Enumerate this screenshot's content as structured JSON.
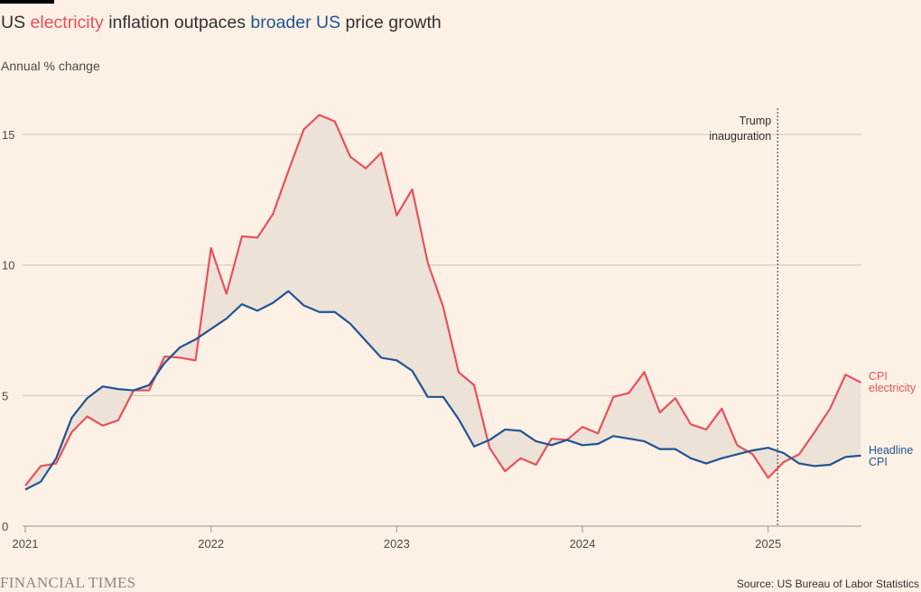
{
  "title": {
    "prefix": "US ",
    "highlight_red": "electricity",
    "middle": " inflation outpaces ",
    "highlight_blue": "broader US",
    "suffix": " price growth"
  },
  "footer": {
    "logo": "FINANCIAL TIMES",
    "source": "Source: US Bureau of Labor Statistics"
  },
  "colors": {
    "background": "#fdf1e5",
    "electricity": "#e9505c",
    "headline": "#1f5493",
    "fill": "#ede2d8",
    "grid": "#cfc4bb"
  },
  "chart_data": {
    "type": "line",
    "title": "US electricity inflation outpaces broader US price growth",
    "ylabel": "Annual % change",
    "xlabel": "",
    "ylim": [
      0,
      16
    ],
    "yticks": [
      0,
      5,
      10,
      15
    ],
    "xticks": [
      "2021",
      "2022",
      "2023",
      "2024",
      "2025"
    ],
    "x_start": "2021-01",
    "x_end": "2025-07",
    "frequency": "monthly",
    "grid": true,
    "shaded_gap_between_series": true,
    "annotation": {
      "date": "2025-01-20",
      "label_line1": "Trump",
      "label_line2": "inauguration"
    },
    "series": [
      {
        "name": "CPI electricity",
        "label_line1": "CPI",
        "label_line2": "electricity",
        "values": [
          1.55,
          2.3,
          2.4,
          3.6,
          4.2,
          3.85,
          4.05,
          5.2,
          5.2,
          6.5,
          6.45,
          6.35,
          10.65,
          8.9,
          11.1,
          11.05,
          11.95,
          13.6,
          15.2,
          15.75,
          15.5,
          14.15,
          13.7,
          14.3,
          11.9,
          12.9,
          10.1,
          8.4,
          5.9,
          5.4,
          3.0,
          2.1,
          2.6,
          2.35,
          3.35,
          3.3,
          3.8,
          3.55,
          4.95,
          5.1,
          5.9,
          4.35,
          4.9,
          3.9,
          3.7,
          4.5,
          3.1,
          2.75,
          1.85,
          2.45,
          2.75,
          3.6,
          4.5,
          5.8,
          5.5
        ]
      },
      {
        "name": "Headline CPI",
        "label_line1": "Headline",
        "label_line2": "CPI",
        "values": [
          1.4,
          1.7,
          2.6,
          4.15,
          4.9,
          5.35,
          5.25,
          5.2,
          5.4,
          6.25,
          6.85,
          7.15,
          7.55,
          7.95,
          8.5,
          8.25,
          8.55,
          9.0,
          8.45,
          8.2,
          8.2,
          7.75,
          7.1,
          6.45,
          6.35,
          5.95,
          4.95,
          4.95,
          4.1,
          3.05,
          3.3,
          3.7,
          3.65,
          3.25,
          3.1,
          3.3,
          3.1,
          3.15,
          3.45,
          3.35,
          3.25,
          2.95,
          2.95,
          2.6,
          2.4,
          2.6,
          2.75,
          2.9,
          3.0,
          2.8,
          2.4,
          2.3,
          2.35,
          2.65,
          2.7
        ]
      }
    ]
  }
}
